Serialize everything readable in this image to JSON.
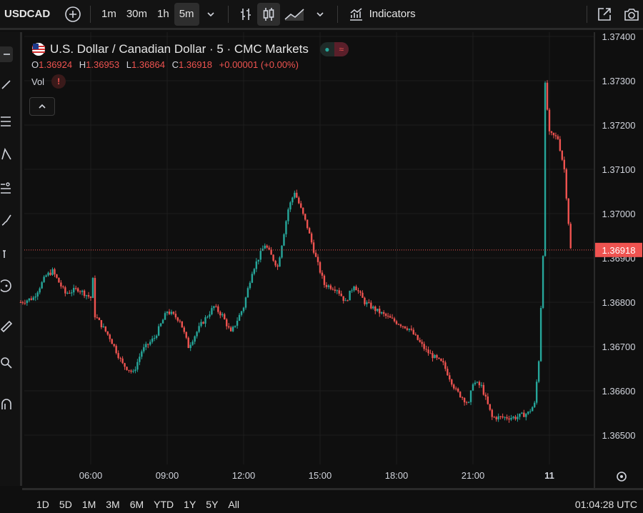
{
  "toolbar": {
    "symbol": "USDCAD",
    "timeframes": [
      "1m",
      "30m",
      "1h",
      "5m"
    ],
    "active_timeframe": "5m",
    "indicators_label": "Indicators"
  },
  "legend": {
    "title": "U.S. Dollar / Canadian Dollar · 5 · CMC Markets",
    "o_label": "O",
    "o_value": "1.36924",
    "h_label": "H",
    "h_value": "1.36953",
    "l_label": "L",
    "l_value": "1.36864",
    "c_label": "C",
    "c_value": "1.36918",
    "change": "+0.00001 (+0.00%)",
    "vol_label": "Vol",
    "warn_glyph": "!"
  },
  "price_axis": {
    "ticks": [
      "1.37400",
      "1.37300",
      "1.37200",
      "1.37100",
      "1.37000",
      "1.36900",
      "1.36800",
      "1.36700",
      "1.36600",
      "1.36500"
    ],
    "current_price": "1.36918"
  },
  "time_axis": {
    "ticks": [
      "06:00",
      "09:00",
      "12:00",
      "15:00",
      "18:00",
      "21:00",
      "11"
    ]
  },
  "bottom": {
    "ranges": [
      "1D",
      "5D",
      "1M",
      "3M",
      "6M",
      "YTD",
      "1Y",
      "5Y",
      "All"
    ],
    "clock": "01:04:28 UTC"
  },
  "colors": {
    "up": "#26a69a",
    "down": "#ef5350",
    "background": "#0f0f0f",
    "grid": "#1e1e1e"
  },
  "chart_data": {
    "type": "candlestick",
    "y_range": [
      1.3645,
      1.3741
    ],
    "current_price": 1.36918,
    "close_path": [
      [
        "03:15",
        1.368
      ],
      [
        "03:45",
        1.3681
      ],
      [
        "04:15",
        1.3686
      ],
      [
        "04:30",
        1.3687
      ],
      [
        "05:00",
        1.3682
      ],
      [
        "05:30",
        1.3683
      ],
      [
        "06:00",
        1.3681
      ],
      [
        "06:05",
        1.3685
      ],
      [
        "06:10",
        1.3677
      ],
      [
        "06:45",
        1.3672
      ],
      [
        "07:15",
        1.3666
      ],
      [
        "07:40",
        1.3664
      ],
      [
        "08:00",
        1.3669
      ],
      [
        "08:30",
        1.3672
      ],
      [
        "09:00",
        1.3678
      ],
      [
        "09:30",
        1.3676
      ],
      [
        "09:50",
        1.367
      ],
      [
        "10:20",
        1.3675
      ],
      [
        "10:50",
        1.3679
      ],
      [
        "11:10",
        1.3677
      ],
      [
        "11:30",
        1.3673
      ],
      [
        "12:00",
        1.3679
      ],
      [
        "12:20",
        1.3687
      ],
      [
        "12:50",
        1.3693
      ],
      [
        "13:20",
        1.3688
      ],
      [
        "13:45",
        1.3701
      ],
      [
        "14:00",
        1.3705
      ],
      [
        "14:30",
        1.3697
      ],
      [
        "14:50",
        1.369
      ],
      [
        "15:10",
        1.3684
      ],
      [
        "15:40",
        1.3683
      ],
      [
        "16:00",
        1.368
      ],
      [
        "16:20",
        1.3684
      ],
      [
        "16:45",
        1.368
      ],
      [
        "17:15",
        1.3678
      ],
      [
        "17:50",
        1.3676
      ],
      [
        "18:30",
        1.3674
      ],
      [
        "19:10",
        1.3669
      ],
      [
        "19:50",
        1.3666
      ],
      [
        "20:20",
        1.366
      ],
      [
        "20:50",
        1.3657
      ],
      [
        "21:00",
        1.3662
      ],
      [
        "21:20",
        1.3661
      ],
      [
        "21:45",
        1.3654
      ],
      [
        "22:10",
        1.3654
      ],
      [
        "22:40",
        1.3654
      ],
      [
        "23:10",
        1.3655
      ],
      [
        "23:25",
        1.3657
      ],
      [
        "23:35",
        1.3667
      ],
      [
        "23:45",
        1.3691
      ],
      [
        "23:50",
        1.3729
      ],
      [
        "00:00",
        1.3718
      ],
      [
        "00:20",
        1.3717
      ],
      [
        "00:35",
        1.371
      ],
      [
        "00:50",
        1.3692
      ]
    ]
  }
}
